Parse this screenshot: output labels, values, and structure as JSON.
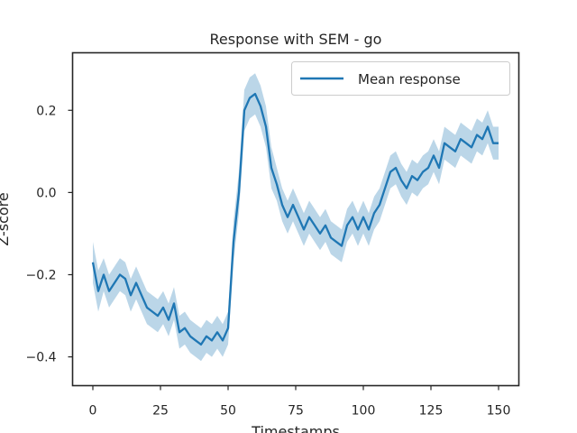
{
  "chart_data": {
    "type": "line",
    "title": "Response with SEM - go",
    "xlabel": "Timestamps",
    "ylabel": "Z-score",
    "xlim": [
      -7.5,
      157.5
    ],
    "ylim": [
      -0.47,
      0.34
    ],
    "xticks": [
      0,
      25,
      50,
      75,
      100,
      125,
      150
    ],
    "yticks": [
      -0.4,
      -0.2,
      0.0,
      0.2
    ],
    "ytick_labels": [
      "−0.4",
      "−0.2",
      "0.0",
      "0.2"
    ],
    "grid": false,
    "legend": {
      "placement": "top-right",
      "entries": [
        "Mean response"
      ]
    },
    "colors": {
      "line": "#1f77b4",
      "band": "#1f77b4"
    },
    "series": [
      {
        "name": "Mean response",
        "x": [
          0,
          2,
          4,
          6,
          8,
          10,
          12,
          14,
          16,
          18,
          20,
          22,
          24,
          26,
          28,
          30,
          32,
          34,
          36,
          38,
          40,
          42,
          44,
          46,
          48,
          50,
          52,
          54,
          56,
          58,
          60,
          62,
          64,
          66,
          68,
          70,
          72,
          74,
          76,
          78,
          80,
          82,
          84,
          86,
          88,
          90,
          92,
          94,
          96,
          98,
          100,
          102,
          104,
          106,
          108,
          110,
          112,
          114,
          116,
          118,
          120,
          122,
          124,
          126,
          128,
          130,
          132,
          134,
          136,
          138,
          140,
          142,
          144,
          146,
          148,
          150
        ],
        "y": [
          -0.17,
          -0.24,
          -0.2,
          -0.24,
          -0.22,
          -0.2,
          -0.21,
          -0.25,
          -0.22,
          -0.25,
          -0.28,
          -0.29,
          -0.3,
          -0.28,
          -0.31,
          -0.27,
          -0.34,
          -0.33,
          -0.35,
          -0.36,
          -0.37,
          -0.35,
          -0.36,
          -0.34,
          -0.36,
          -0.33,
          -0.12,
          0.0,
          0.2,
          0.23,
          0.24,
          0.21,
          0.16,
          0.06,
          0.02,
          -0.03,
          -0.06,
          -0.03,
          -0.06,
          -0.09,
          -0.06,
          -0.08,
          -0.1,
          -0.08,
          -0.11,
          -0.12,
          -0.13,
          -0.08,
          -0.06,
          -0.09,
          -0.06,
          -0.09,
          -0.05,
          -0.03,
          0.01,
          0.05,
          0.06,
          0.03,
          0.01,
          0.04,
          0.03,
          0.05,
          0.06,
          0.09,
          0.06,
          0.12,
          0.11,
          0.1,
          0.13,
          0.12,
          0.11,
          0.14,
          0.13,
          0.16,
          0.12,
          0.12
        ],
        "sem": [
          0.05,
          0.05,
          0.04,
          0.04,
          0.04,
          0.04,
          0.04,
          0.04,
          0.04,
          0.04,
          0.04,
          0.04,
          0.04,
          0.04,
          0.04,
          0.04,
          0.04,
          0.04,
          0.04,
          0.04,
          0.04,
          0.04,
          0.04,
          0.04,
          0.04,
          0.04,
          0.05,
          0.05,
          0.05,
          0.05,
          0.05,
          0.05,
          0.05,
          0.05,
          0.04,
          0.04,
          0.04,
          0.04,
          0.04,
          0.04,
          0.04,
          0.04,
          0.04,
          0.04,
          0.04,
          0.04,
          0.04,
          0.04,
          0.04,
          0.04,
          0.04,
          0.04,
          0.04,
          0.04,
          0.04,
          0.04,
          0.04,
          0.04,
          0.04,
          0.04,
          0.04,
          0.04,
          0.04,
          0.04,
          0.04,
          0.04,
          0.04,
          0.04,
          0.04,
          0.04,
          0.04,
          0.04,
          0.04,
          0.04,
          0.04,
          0.04
        ]
      }
    ]
  }
}
